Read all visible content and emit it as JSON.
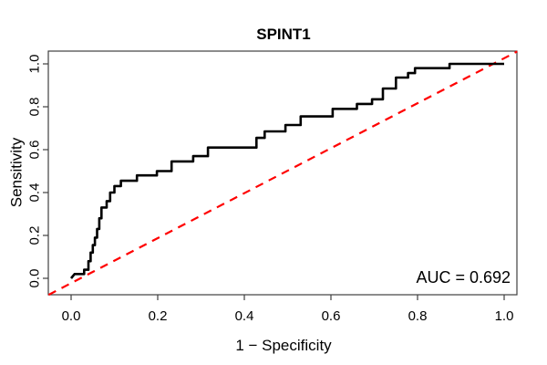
{
  "chart_data": {
    "type": "line",
    "title": "SPINT1",
    "xlabel": "1 − Specificity",
    "ylabel": "Sensitivity",
    "xlim": [
      -0.05,
      1.03
    ],
    "ylim": [
      -0.08,
      1.06
    ],
    "grid": false,
    "legend": null,
    "x_ticks": {
      "values": [
        0,
        0.2,
        0.4,
        0.6,
        0.8,
        1.0
      ],
      "labels": [
        "0.0",
        "0.2",
        "0.4",
        "0.6",
        "0.8",
        "1.0"
      ]
    },
    "y_ticks": {
      "values": [
        0,
        0.2,
        0.4,
        0.6,
        0.8,
        1.0
      ],
      "labels": [
        "0.0",
        "0.2",
        "0.4",
        "0.6",
        "0.8",
        "1.0"
      ]
    },
    "annotations": [
      {
        "text": "AUC = 0.692",
        "anchor": "bottom-right"
      }
    ],
    "auc": 0.692,
    "frame_color": "#404040",
    "series": [
      {
        "name": "chance-diagonal",
        "type": "line",
        "color": "#ff0000",
        "linestyle": "dashed",
        "linewidth": 2.2,
        "points": [
          [
            -0.052,
            -0.077
          ],
          [
            1.03,
            1.058
          ]
        ]
      },
      {
        "name": "roc-curve",
        "type": "step",
        "color": "#000000",
        "linestyle": "solid",
        "linewidth": 2.6,
        "points": [
          [
            0.0,
            0.0
          ],
          [
            0.008,
            0.02
          ],
          [
            0.03,
            0.02
          ],
          [
            0.03,
            0.04
          ],
          [
            0.04,
            0.04
          ],
          [
            0.04,
            0.08
          ],
          [
            0.045,
            0.08
          ],
          [
            0.045,
            0.12
          ],
          [
            0.05,
            0.12
          ],
          [
            0.05,
            0.155
          ],
          [
            0.055,
            0.155
          ],
          [
            0.055,
            0.19
          ],
          [
            0.06,
            0.19
          ],
          [
            0.06,
            0.23
          ],
          [
            0.065,
            0.23
          ],
          [
            0.065,
            0.28
          ],
          [
            0.07,
            0.28
          ],
          [
            0.07,
            0.33
          ],
          [
            0.082,
            0.33
          ],
          [
            0.082,
            0.36
          ],
          [
            0.09,
            0.36
          ],
          [
            0.09,
            0.4
          ],
          [
            0.1,
            0.4
          ],
          [
            0.1,
            0.43
          ],
          [
            0.115,
            0.43
          ],
          [
            0.115,
            0.455
          ],
          [
            0.152,
            0.455
          ],
          [
            0.152,
            0.48
          ],
          [
            0.198,
            0.48
          ],
          [
            0.198,
            0.5
          ],
          [
            0.232,
            0.5
          ],
          [
            0.232,
            0.545
          ],
          [
            0.282,
            0.545
          ],
          [
            0.282,
            0.57
          ],
          [
            0.316,
            0.57
          ],
          [
            0.316,
            0.61
          ],
          [
            0.428,
            0.61
          ],
          [
            0.428,
            0.655
          ],
          [
            0.447,
            0.655
          ],
          [
            0.447,
            0.685
          ],
          [
            0.495,
            0.685
          ],
          [
            0.495,
            0.715
          ],
          [
            0.53,
            0.715
          ],
          [
            0.53,
            0.755
          ],
          [
            0.604,
            0.755
          ],
          [
            0.604,
            0.79
          ],
          [
            0.66,
            0.79
          ],
          [
            0.66,
            0.813
          ],
          [
            0.695,
            0.813
          ],
          [
            0.695,
            0.835
          ],
          [
            0.72,
            0.835
          ],
          [
            0.72,
            0.885
          ],
          [
            0.75,
            0.885
          ],
          [
            0.75,
            0.936
          ],
          [
            0.778,
            0.936
          ],
          [
            0.778,
            0.957
          ],
          [
            0.794,
            0.957
          ],
          [
            0.794,
            0.98
          ],
          [
            0.874,
            0.98
          ],
          [
            0.874,
            1.0
          ],
          [
            1.0,
            1.0
          ]
        ]
      }
    ]
  }
}
